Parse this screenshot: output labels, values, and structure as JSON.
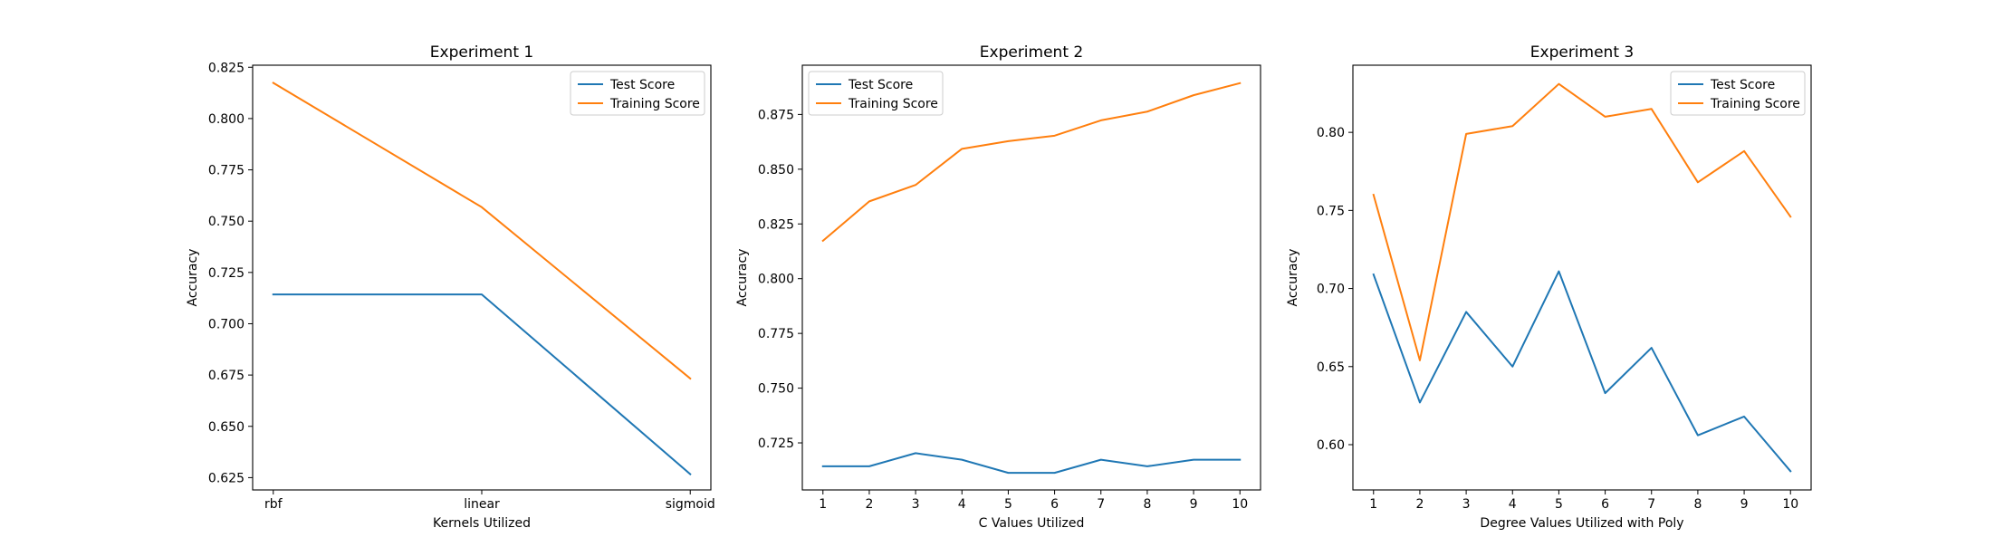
{
  "chart_data": [
    {
      "type": "line",
      "title": "Experiment 1",
      "xlabel": "Kernels Utilized",
      "ylabel": "Accuracy",
      "categories": [
        "rbf",
        "linear",
        "sigmoid"
      ],
      "ylim": [
        0.619,
        0.826
      ],
      "yticks": [
        "0.625",
        "0.650",
        "0.675",
        "0.700",
        "0.725",
        "0.750",
        "0.775",
        "0.800",
        "0.825"
      ],
      "legend": "top-right",
      "series": [
        {
          "name": "Test Score",
          "color": "#1f77b4",
          "values": [
            0.7143,
            0.7143,
            0.6267
          ]
        },
        {
          "name": "Training Score",
          "color": "#ff7f0e",
          "values": [
            0.8174,
            0.7568,
            0.6733
          ]
        }
      ]
    },
    {
      "type": "line",
      "title": "Experiment 2",
      "xlabel": "C Values Utilized",
      "ylabel": "Accuracy",
      "categories": [
        "1",
        "2",
        "3",
        "4",
        "5",
        "6",
        "7",
        "8",
        "9",
        "10"
      ],
      "ylim": [
        0.7035,
        0.8975
      ],
      "yticks": [
        "0.725",
        "0.750",
        "0.775",
        "0.800",
        "0.825",
        "0.850",
        "0.875"
      ],
      "legend": "top-left",
      "series": [
        {
          "name": "Test Score",
          "color": "#1f77b4",
          "values": [
            0.7143,
            0.7143,
            0.7203,
            0.7173,
            0.7113,
            0.7113,
            0.7173,
            0.7143,
            0.7173,
            0.7173
          ]
        },
        {
          "name": "Training Score",
          "color": "#ff7f0e",
          "values": [
            0.8173,
            0.8353,
            0.8428,
            0.8593,
            0.8628,
            0.8653,
            0.8723,
            0.8763,
            0.8838,
            0.8893
          ]
        }
      ]
    },
    {
      "type": "line",
      "title": "Experiment 3",
      "xlabel": "Degree Values Utilized with Poly",
      "ylabel": "Accuracy",
      "categories": [
        "1",
        "2",
        "3",
        "4",
        "5",
        "6",
        "7",
        "8",
        "9",
        "10"
      ],
      "ylim": [
        0.571,
        0.843
      ],
      "yticks": [
        "0.60",
        "0.65",
        "0.70",
        "0.75",
        "0.80"
      ],
      "legend": "top-right",
      "series": [
        {
          "name": "Test Score",
          "color": "#1f77b4",
          "values": [
            0.709,
            0.627,
            0.685,
            0.65,
            0.711,
            0.633,
            0.662,
            0.606,
            0.618,
            0.583
          ]
        },
        {
          "name": "Training Score",
          "color": "#ff7f0e",
          "values": [
            0.76,
            0.654,
            0.799,
            0.804,
            0.831,
            0.81,
            0.815,
            0.768,
            0.788,
            0.746
          ]
        }
      ]
    }
  ]
}
